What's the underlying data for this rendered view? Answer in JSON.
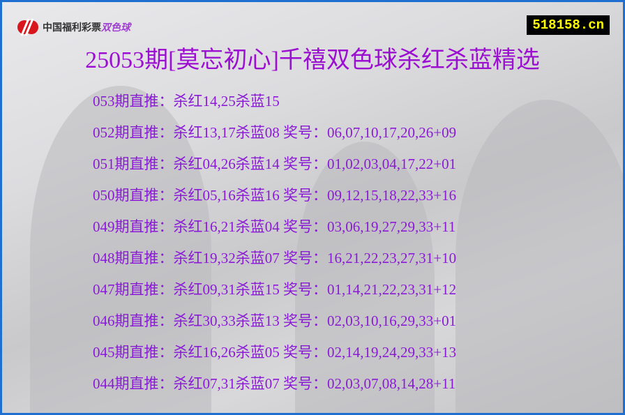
{
  "header": {
    "logo_text": "中国福利彩票",
    "logo_game": "双色球",
    "site": "518158.cn",
    "title": "25053期[莫忘初心]千禧双色球杀红杀蓝精选"
  },
  "colors": {
    "text": "#8a1ad6",
    "title": "#9b10d0",
    "border": "#1e6fd0",
    "site_bg": "#000000",
    "site_fg": "#ffff00"
  },
  "rows": [
    "053期直推：杀红14,25杀蓝15",
    "052期直推：杀红13,17杀蓝08 奖号：06,07,10,17,20,26+09",
    "051期直推：杀红04,26杀蓝14 奖号：01,02,03,04,17,22+01",
    "050期直推：杀红05,16杀蓝16 奖号：09,12,15,18,22,33+16",
    "049期直推：杀红16,21杀蓝04 奖号：03,06,19,27,29,33+11",
    "048期直推：杀红19,32杀蓝07 奖号：16,21,22,23,27,31+10",
    "047期直推：杀红09,31杀蓝15 奖号：01,14,21,22,23,31+12",
    "046期直推：杀红30,33杀蓝13 奖号：02,03,10,16,29,33+01",
    "045期直推：杀红16,26杀蓝05 奖号：02,14,19,24,29,33+13",
    "044期直推：杀红07,31杀蓝07 奖号：02,03,07,08,14,28+11"
  ]
}
